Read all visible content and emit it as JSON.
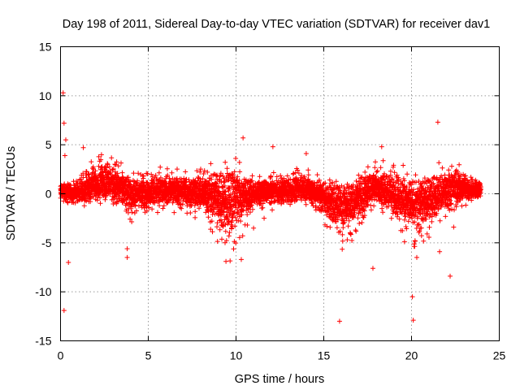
{
  "chart_data": {
    "type": "scatter",
    "title": "Day 198 of 2011, Sidereal Day-to-day VTEC variation (SDTVAR) for receiver dav1",
    "xlabel": "GPS time / hours",
    "ylabel": "SDTVAR / TECUs",
    "xlim": [
      0,
      25
    ],
    "ylim": [
      -15,
      15
    ],
    "xticks": [
      0,
      5,
      10,
      15,
      20,
      25
    ],
    "yticks": [
      -15,
      -10,
      -5,
      0,
      5,
      10,
      15
    ],
    "grid": true,
    "marker": "+",
    "series_color": "#ff0000",
    "x_range_of_data": [
      0,
      23.95
    ],
    "bulk_band": {
      "description": "dense band of points spanning most of the day, roughly centered at 0",
      "approx_envelope": [
        {
          "x": 0.0,
          "low": -1.0,
          "high": 1.5
        },
        {
          "x": 1.0,
          "low": -1.5,
          "high": 2.0
        },
        {
          "x": 2.5,
          "low": -1.5,
          "high": 5.5
        },
        {
          "x": 4.0,
          "low": -3.0,
          "high": 2.5
        },
        {
          "x": 6.0,
          "low": -2.0,
          "high": 3.0
        },
        {
          "x": 8.0,
          "low": -3.0,
          "high": 3.0
        },
        {
          "x": 9.6,
          "low": -7.8,
          "high": 5.3
        },
        {
          "x": 11.0,
          "low": -2.0,
          "high": 2.0
        },
        {
          "x": 14.0,
          "low": -1.5,
          "high": 3.0
        },
        {
          "x": 16.2,
          "low": -6.5,
          "high": 2.0
        },
        {
          "x": 18.0,
          "low": -1.5,
          "high": 4.0
        },
        {
          "x": 20.2,
          "low": -6.5,
          "high": 2.5
        },
        {
          "x": 22.5,
          "low": -2.0,
          "high": 4.0
        },
        {
          "x": 23.9,
          "low": -0.5,
          "high": 1.5
        }
      ]
    },
    "outliers": [
      {
        "x": 0.15,
        "y": 10.3
      },
      {
        "x": 0.2,
        "y": 7.2
      },
      {
        "x": 0.2,
        "y": -11.9
      },
      {
        "x": 0.3,
        "y": 5.5
      },
      {
        "x": 0.45,
        "y": -7.0
      },
      {
        "x": 0.25,
        "y": 3.9
      },
      {
        "x": 1.3,
        "y": 4.7
      },
      {
        "x": 3.8,
        "y": -6.5
      },
      {
        "x": 3.8,
        "y": -5.6
      },
      {
        "x": 10.2,
        "y": 3.2
      },
      {
        "x": 10.3,
        "y": -6.7
      },
      {
        "x": 10.4,
        "y": 5.7
      },
      {
        "x": 11.0,
        "y": -3.5
      },
      {
        "x": 11.6,
        "y": -2.5
      },
      {
        "x": 12.1,
        "y": 4.8
      },
      {
        "x": 14.0,
        "y": 4.1
      },
      {
        "x": 15.9,
        "y": -13.0
      },
      {
        "x": 17.8,
        "y": -7.6
      },
      {
        "x": 18.3,
        "y": 4.8
      },
      {
        "x": 19.6,
        "y": -4.9
      },
      {
        "x": 20.05,
        "y": -10.5
      },
      {
        "x": 20.1,
        "y": -12.9
      },
      {
        "x": 20.3,
        "y": -6.5
      },
      {
        "x": 21.5,
        "y": 7.3
      },
      {
        "x": 21.6,
        "y": -5.9
      },
      {
        "x": 22.2,
        "y": -8.4
      },
      {
        "x": 22.4,
        "y": -3.4
      }
    ]
  }
}
